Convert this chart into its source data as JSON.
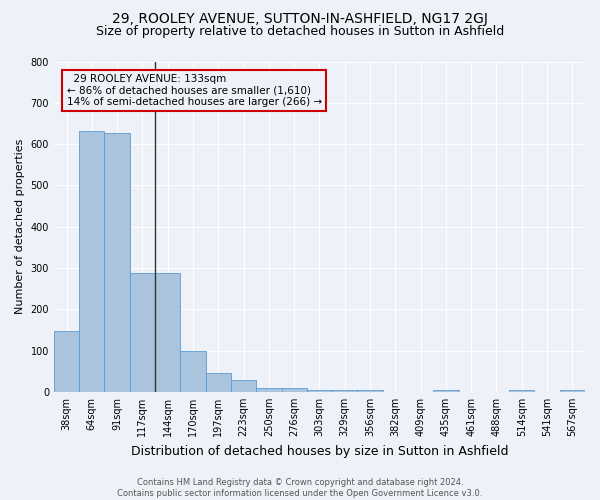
{
  "title": "29, ROOLEY AVENUE, SUTTON-IN-ASHFIELD, NG17 2GJ",
  "subtitle": "Size of property relative to detached houses in Sutton in Ashfield",
  "xlabel": "Distribution of detached houses by size in Sutton in Ashfield",
  "ylabel": "Number of detached properties",
  "footnote": "Contains HM Land Registry data © Crown copyright and database right 2024.\nContains public sector information licensed under the Open Government Licence v3.0.",
  "categories": [
    "38sqm",
    "64sqm",
    "91sqm",
    "117sqm",
    "144sqm",
    "170sqm",
    "197sqm",
    "223sqm",
    "250sqm",
    "276sqm",
    "303sqm",
    "329sqm",
    "356sqm",
    "382sqm",
    "409sqm",
    "435sqm",
    "461sqm",
    "488sqm",
    "514sqm",
    "541sqm",
    "567sqm"
  ],
  "values": [
    148,
    632,
    626,
    287,
    287,
    100,
    46,
    29,
    9,
    9,
    5,
    5,
    4,
    0,
    0,
    4,
    0,
    0,
    4,
    0,
    4
  ],
  "bar_color": "#aac4de",
  "bar_edge_color": "#5b9bd5",
  "marker_label": "29 ROOLEY AVENUE: 133sqm",
  "marker_pct_left": "86% of detached houses are smaller (1,610)",
  "marker_pct_right": "14% of semi-detached houses are larger (266)",
  "marker_line_color": "#333333",
  "annotation_box_edge_color": "#cc0000",
  "ylim": [
    0,
    800
  ],
  "yticks": [
    0,
    100,
    200,
    300,
    400,
    500,
    600,
    700,
    800
  ],
  "bg_color": "#eef2f8",
  "plot_bg_color": "#eef2f8",
  "grid_color": "#ffffff",
  "title_fontsize": 10,
  "subtitle_fontsize": 9,
  "tick_fontsize": 7,
  "ylabel_fontsize": 8,
  "xlabel_fontsize": 9,
  "footnote_fontsize": 6
}
